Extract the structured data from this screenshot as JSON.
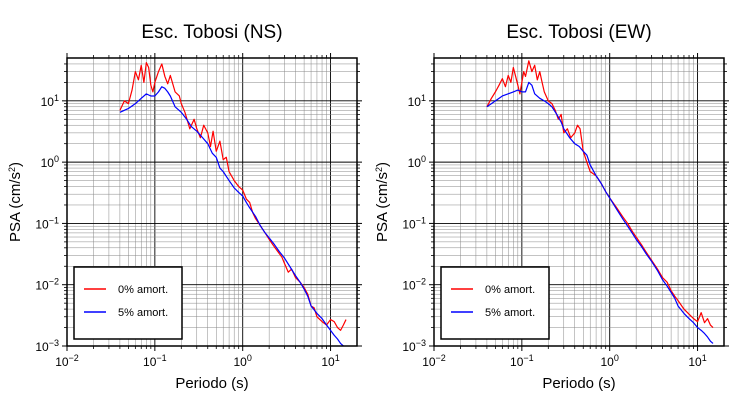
{
  "chart_data": [
    {
      "type": "line",
      "title": "Esc. Tobosi (NS)",
      "xlabel": "Periodo (s)",
      "ylabel": "PSA (cm/s²)",
      "xscale": "log",
      "yscale": "log",
      "xlim": [
        0.01,
        20
      ],
      "ylim": [
        0.001,
        50
      ],
      "grid": true,
      "legend_position": "bottom-left",
      "x_ticks": [
        {
          "base": "10",
          "exp": "−2"
        },
        {
          "base": "10",
          "exp": "−1"
        },
        {
          "base": "10",
          "exp": "0"
        },
        {
          "base": "10",
          "exp": "1"
        }
      ],
      "y_ticks": [
        {
          "base": "10",
          "exp": "−3"
        },
        {
          "base": "10",
          "exp": "−2"
        },
        {
          "base": "10",
          "exp": "−1"
        },
        {
          "base": "10",
          "exp": "0"
        },
        {
          "base": "10",
          "exp": "1"
        }
      ],
      "series": [
        {
          "name": "0% amort.",
          "color": "#ff0000",
          "points": [
            [
              0.04,
              7
            ],
            [
              0.045,
              10
            ],
            [
              0.05,
              9
            ],
            [
              0.055,
              15
            ],
            [
              0.06,
              30
            ],
            [
              0.065,
              22
            ],
            [
              0.07,
              38
            ],
            [
              0.075,
              20
            ],
            [
              0.08,
              42
            ],
            [
              0.085,
              35
            ],
            [
              0.09,
              18
            ],
            [
              0.095,
              14
            ],
            [
              0.1,
              20
            ],
            [
              0.11,
              30
            ],
            [
              0.12,
              40
            ],
            [
              0.13,
              25
            ],
            [
              0.14,
              19
            ],
            [
              0.15,
              26
            ],
            [
              0.17,
              14
            ],
            [
              0.19,
              12
            ],
            [
              0.2,
              9
            ],
            [
              0.22,
              6.5
            ],
            [
              0.25,
              3.5
            ],
            [
              0.28,
              5
            ],
            [
              0.3,
              3.5
            ],
            [
              0.33,
              2.5
            ],
            [
              0.36,
              4
            ],
            [
              0.4,
              3
            ],
            [
              0.43,
              1.8
            ],
            [
              0.46,
              3.2
            ],
            [
              0.5,
              1.5
            ],
            [
              0.55,
              2.2
            ],
            [
              0.6,
              1.1
            ],
            [
              0.65,
              1.2
            ],
            [
              0.7,
              0.7
            ],
            [
              0.8,
              0.5
            ],
            [
              0.9,
              0.4
            ],
            [
              1.0,
              0.35
            ],
            [
              1.1,
              0.25
            ],
            [
              1.2,
              0.22
            ],
            [
              1.3,
              0.15
            ],
            [
              1.4,
              0.12
            ],
            [
              1.6,
              0.09
            ],
            [
              1.8,
              0.07
            ],
            [
              2.0,
              0.055
            ],
            [
              2.2,
              0.045
            ],
            [
              2.5,
              0.035
            ],
            [
              2.8,
              0.028
            ],
            [
              3.0,
              0.022
            ],
            [
              3.3,
              0.016
            ],
            [
              3.6,
              0.018
            ],
            [
              4.0,
              0.013
            ],
            [
              4.5,
              0.011
            ],
            [
              5.0,
              0.009
            ],
            [
              5.5,
              0.007
            ],
            [
              6.0,
              0.0045
            ],
            [
              6.5,
              0.0042
            ],
            [
              7.0,
              0.003
            ],
            [
              8.0,
              0.0025
            ],
            [
              9.0,
              0.0022
            ],
            [
              10.0,
              0.0027
            ],
            [
              11.0,
              0.0025
            ],
            [
              12.0,
              0.002
            ],
            [
              13.0,
              0.0018
            ],
            [
              14.0,
              0.0022
            ],
            [
              15.0,
              0.0027
            ]
          ]
        },
        {
          "name": "5% amort.",
          "color": "#0000ff",
          "points": [
            [
              0.04,
              6.5
            ],
            [
              0.05,
              7.5
            ],
            [
              0.06,
              9
            ],
            [
              0.07,
              11
            ],
            [
              0.08,
              13
            ],
            [
              0.09,
              12
            ],
            [
              0.1,
              12
            ],
            [
              0.11,
              14
            ],
            [
              0.12,
              17
            ],
            [
              0.13,
              16
            ],
            [
              0.14,
              14
            ],
            [
              0.15,
              12
            ],
            [
              0.17,
              8
            ],
            [
              0.2,
              6.5
            ],
            [
              0.23,
              5
            ],
            [
              0.26,
              3.8
            ],
            [
              0.3,
              3.2
            ],
            [
              0.35,
              2.5
            ],
            [
              0.4,
              2
            ],
            [
              0.45,
              1.4
            ],
            [
              0.5,
              1.2
            ],
            [
              0.55,
              0.8
            ],
            [
              0.6,
              0.7
            ],
            [
              0.7,
              0.5
            ],
            [
              0.8,
              0.38
            ],
            [
              0.9,
              0.32
            ],
            [
              1.0,
              0.28
            ],
            [
              1.1,
              0.22
            ],
            [
              1.2,
              0.18
            ],
            [
              1.4,
              0.13
            ],
            [
              1.6,
              0.09
            ],
            [
              1.8,
              0.07
            ],
            [
              2.0,
              0.058
            ],
            [
              2.3,
              0.045
            ],
            [
              2.6,
              0.035
            ],
            [
              3.0,
              0.027
            ],
            [
              3.5,
              0.019
            ],
            [
              4.0,
              0.014
            ],
            [
              4.5,
              0.011
            ],
            [
              5.0,
              0.0085
            ],
            [
              5.5,
              0.0065
            ],
            [
              6.0,
              0.0045
            ],
            [
              7.0,
              0.0034
            ],
            [
              8.0,
              0.0028
            ],
            [
              9.0,
              0.0022
            ],
            [
              10.0,
              0.0018
            ],
            [
              11.0,
              0.0015
            ],
            [
              12.0,
              0.0013
            ],
            [
              13.0,
              0.0011
            ],
            [
              14.0,
              0.001
            ]
          ]
        }
      ]
    },
    {
      "type": "line",
      "title": "Esc. Tobosi (EW)",
      "xlabel": "Periodo (s)",
      "ylabel": "PSA (cm/s²)",
      "xscale": "log",
      "yscale": "log",
      "xlim": [
        0.01,
        20
      ],
      "ylim": [
        0.001,
        50
      ],
      "grid": true,
      "legend_position": "bottom-left",
      "x_ticks": [
        {
          "base": "10",
          "exp": "−2"
        },
        {
          "base": "10",
          "exp": "−1"
        },
        {
          "base": "10",
          "exp": "0"
        },
        {
          "base": "10",
          "exp": "1"
        }
      ],
      "y_ticks": [
        {
          "base": "10",
          "exp": "−3"
        },
        {
          "base": "10",
          "exp": "−2"
        },
        {
          "base": "10",
          "exp": "−1"
        },
        {
          "base": "10",
          "exp": "0"
        },
        {
          "base": "10",
          "exp": "1"
        }
      ],
      "series": [
        {
          "name": "0% amort.",
          "color": "#ff0000",
          "points": [
            [
              0.04,
              8
            ],
            [
              0.045,
              11
            ],
            [
              0.05,
              14
            ],
            [
              0.055,
              18
            ],
            [
              0.06,
              23
            ],
            [
              0.065,
              17
            ],
            [
              0.07,
              26
            ],
            [
              0.075,
              20
            ],
            [
              0.08,
              35
            ],
            [
              0.085,
              25
            ],
            [
              0.09,
              18
            ],
            [
              0.095,
              13
            ],
            [
              0.1,
              20
            ],
            [
              0.105,
              30
            ],
            [
              0.11,
              25
            ],
            [
              0.12,
              45
            ],
            [
              0.13,
              30
            ],
            [
              0.14,
              38
            ],
            [
              0.15,
              22
            ],
            [
              0.16,
              30
            ],
            [
              0.17,
              20
            ],
            [
              0.18,
              14
            ],
            [
              0.2,
              10
            ],
            [
              0.22,
              9
            ],
            [
              0.24,
              7
            ],
            [
              0.26,
              5
            ],
            [
              0.28,
              6
            ],
            [
              0.3,
              3
            ],
            [
              0.33,
              3.5
            ],
            [
              0.36,
              2.5
            ],
            [
              0.4,
              3
            ],
            [
              0.43,
              4
            ],
            [
              0.46,
              3.5
            ],
            [
              0.5,
              1.5
            ],
            [
              0.55,
              1.0
            ],
            [
              0.6,
              0.7
            ],
            [
              0.7,
              0.6
            ],
            [
              0.8,
              0.45
            ],
            [
              0.9,
              0.33
            ],
            [
              1.0,
              0.26
            ],
            [
              1.2,
              0.18
            ],
            [
              1.4,
              0.13
            ],
            [
              1.6,
              0.1
            ],
            [
              1.8,
              0.075
            ],
            [
              2.0,
              0.06
            ],
            [
              2.3,
              0.045
            ],
            [
              2.6,
              0.034
            ],
            [
              3.0,
              0.025
            ],
            [
              3.5,
              0.018
            ],
            [
              4.0,
              0.013
            ],
            [
              4.5,
              0.011
            ],
            [
              5.0,
              0.008
            ],
            [
              5.5,
              0.0065
            ],
            [
              6.0,
              0.0055
            ],
            [
              7.0,
              0.004
            ],
            [
              8.0,
              0.0033
            ],
            [
              9.0,
              0.0028
            ],
            [
              10.0,
              0.0025
            ],
            [
              11.0,
              0.0035
            ],
            [
              12.0,
              0.0024
            ],
            [
              13.0,
              0.0028
            ],
            [
              14.0,
              0.0022
            ],
            [
              15.0,
              0.002
            ]
          ]
        },
        {
          "name": "5% amort.",
          "color": "#0000ff",
          "points": [
            [
              0.04,
              8
            ],
            [
              0.05,
              10
            ],
            [
              0.06,
              12
            ],
            [
              0.07,
              13
            ],
            [
              0.08,
              14
            ],
            [
              0.09,
              15
            ],
            [
              0.1,
              14
            ],
            [
              0.11,
              14
            ],
            [
              0.12,
              20
            ],
            [
              0.13,
              18
            ],
            [
              0.14,
              13
            ],
            [
              0.16,
              11
            ],
            [
              0.18,
              10
            ],
            [
              0.2,
              9
            ],
            [
              0.22,
              8
            ],
            [
              0.25,
              6
            ],
            [
              0.28,
              4.5
            ],
            [
              0.3,
              3.5
            ],
            [
              0.35,
              2.5
            ],
            [
              0.4,
              2
            ],
            [
              0.45,
              1.8
            ],
            [
              0.5,
              1.5
            ],
            [
              0.55,
              1.3
            ],
            [
              0.6,
              0.9
            ],
            [
              0.7,
              0.6
            ],
            [
              0.8,
              0.45
            ],
            [
              0.9,
              0.33
            ],
            [
              1.0,
              0.26
            ],
            [
              1.2,
              0.17
            ],
            [
              1.4,
              0.12
            ],
            [
              1.6,
              0.09
            ],
            [
              1.8,
              0.07
            ],
            [
              2.0,
              0.055
            ],
            [
              2.3,
              0.042
            ],
            [
              2.6,
              0.032
            ],
            [
              3.0,
              0.024
            ],
            [
              3.5,
              0.017
            ],
            [
              4.0,
              0.012
            ],
            [
              4.5,
              0.0095
            ],
            [
              5.0,
              0.0075
            ],
            [
              5.5,
              0.006
            ],
            [
              6.0,
              0.0045
            ],
            [
              7.0,
              0.0034
            ],
            [
              8.0,
              0.0028
            ],
            [
              9.0,
              0.0024
            ],
            [
              10.0,
              0.002
            ],
            [
              11.0,
              0.0018
            ],
            [
              12.0,
              0.0016
            ],
            [
              13.0,
              0.0014
            ],
            [
              14.0,
              0.0012
            ],
            [
              15.0,
              0.0011
            ]
          ]
        }
      ]
    }
  ]
}
